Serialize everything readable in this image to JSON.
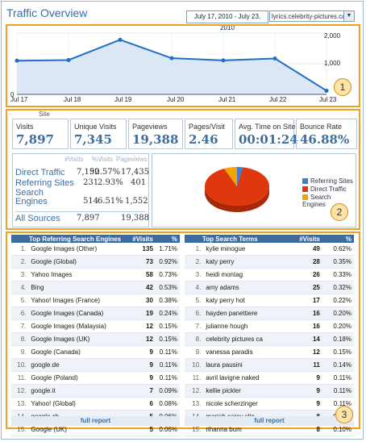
{
  "header": {
    "title": "Traffic Overview",
    "date_range": "July 17, 2010 - July 23, 2010",
    "site": "lyrics.celebrity-pictures.ca"
  },
  "callouts": [
    "1",
    "2",
    "3"
  ],
  "chart_data": {
    "type": "area",
    "x": [
      "Jul 17",
      "Jul 18",
      "Jul 19",
      "Jul 20",
      "Jul 21",
      "Jul 22",
      "Jul 23"
    ],
    "series": [
      {
        "values": [
          1100,
          1120,
          1780,
          1180,
          1110,
          1170,
          120
        ]
      }
    ],
    "ylim": [
      0,
      2000
    ],
    "yticks": [
      "0",
      "1,000",
      "2,000"
    ],
    "color": "#1f6fc5",
    "fill": "#dbe7f5"
  },
  "site_legend": "Site",
  "metrics": [
    {
      "label": "Visits",
      "value": "7,897"
    },
    {
      "label": "Unique Visits",
      "value": "7,345"
    },
    {
      "label": "Pageviews",
      "value": "19,388"
    },
    {
      "label": "Pages/Visit",
      "value": "2.46"
    },
    {
      "label": "Avg. Time on Site",
      "value": "00:01:24"
    },
    {
      "label": "Bounce Rate",
      "value": "46.88%"
    }
  ],
  "sources": {
    "headers": [
      "#Visits",
      "%Visits",
      "Pageviews"
    ],
    "rows": [
      {
        "name": "Direct Traffic",
        "visits": "7,152",
        "pct": "90.57%",
        "pageviews": "17,435"
      },
      {
        "name": "Referring Sites",
        "visits": "231",
        "pct": "2.93%",
        "pageviews": "401"
      },
      {
        "name": "Search Engines",
        "visits": "514",
        "pct": "6.51%",
        "pageviews": "1,552"
      }
    ],
    "total": {
      "name": "All Sources",
      "visits": "7,897",
      "pageviews": "19,388"
    }
  },
  "pie": {
    "values": [
      231,
      7152,
      514
    ],
    "legend": [
      "Referring Sites",
      "Direct Traffic",
      "Search Engines"
    ],
    "colors": [
      "#3a7fd5",
      "#e0380e",
      "#f5a300"
    ]
  },
  "search_engines": {
    "headers": [
      "Top Referring Search Engines",
      "#Visits",
      "%"
    ],
    "rows": [
      [
        "1.",
        "Google Images (Other)",
        "135",
        "1.71%"
      ],
      [
        "2.",
        "Google (Global)",
        "73",
        "0.92%"
      ],
      [
        "3.",
        "Yahoo Images",
        "58",
        "0.73%"
      ],
      [
        "4.",
        "Bing",
        "42",
        "0.53%"
      ],
      [
        "5.",
        "Yahoo! Images (France)",
        "30",
        "0.38%"
      ],
      [
        "6.",
        "Google Images (Canada)",
        "19",
        "0.24%"
      ],
      [
        "7.",
        "Google Images (Malaysia)",
        "12",
        "0.15%"
      ],
      [
        "8.",
        "Google Images (UK)",
        "12",
        "0.15%"
      ],
      [
        "9.",
        "Google (Canada)",
        "9",
        "0.11%"
      ],
      [
        "10.",
        "google.de",
        "9",
        "0.11%"
      ],
      [
        "11.",
        "Google (Poland)",
        "9",
        "0.11%"
      ],
      [
        "12.",
        "google.it",
        "7",
        "0.09%"
      ],
      [
        "13.",
        "Yahoo! (Global)",
        "6",
        "0.08%"
      ],
      [
        "14.",
        "google.ch",
        "5",
        "0.06%"
      ],
      [
        "15.",
        "Google (UK)",
        "5",
        "0.06%"
      ]
    ],
    "footer": "full report"
  },
  "search_terms": {
    "headers": [
      "Top Search Terms",
      "#Visits",
      "%"
    ],
    "rows": [
      [
        "1.",
        "kylie minogue",
        "49",
        "0.62%"
      ],
      [
        "2.",
        "katy perry",
        "28",
        "0.35%"
      ],
      [
        "3.",
        "heidi montag",
        "26",
        "0.33%"
      ],
      [
        "4.",
        "amy adams",
        "25",
        "0.32%"
      ],
      [
        "5.",
        "katy perry hot",
        "17",
        "0.22%"
      ],
      [
        "6.",
        "hayden panettiere",
        "16",
        "0.20%"
      ],
      [
        "7.",
        "julianne hough",
        "16",
        "0.20%"
      ],
      [
        "8.",
        "celebrity pictures ca",
        "14",
        "0.18%"
      ],
      [
        "9.",
        "vanessa paradis",
        "12",
        "0.15%"
      ],
      [
        "10.",
        "laura pausini",
        "11",
        "0.14%"
      ],
      [
        "11.",
        "avril lavigne naked",
        "9",
        "0.11%"
      ],
      [
        "12.",
        "kellie pickler",
        "9",
        "0.11%"
      ],
      [
        "13.",
        "nicole scherzinger",
        "9",
        "0.11%"
      ],
      [
        "14.",
        "mariah carey slip",
        "8",
        "0.10%"
      ],
      [
        "15.",
        "rihanna bum",
        "8",
        "0.10%"
      ]
    ],
    "footer": "full report"
  }
}
